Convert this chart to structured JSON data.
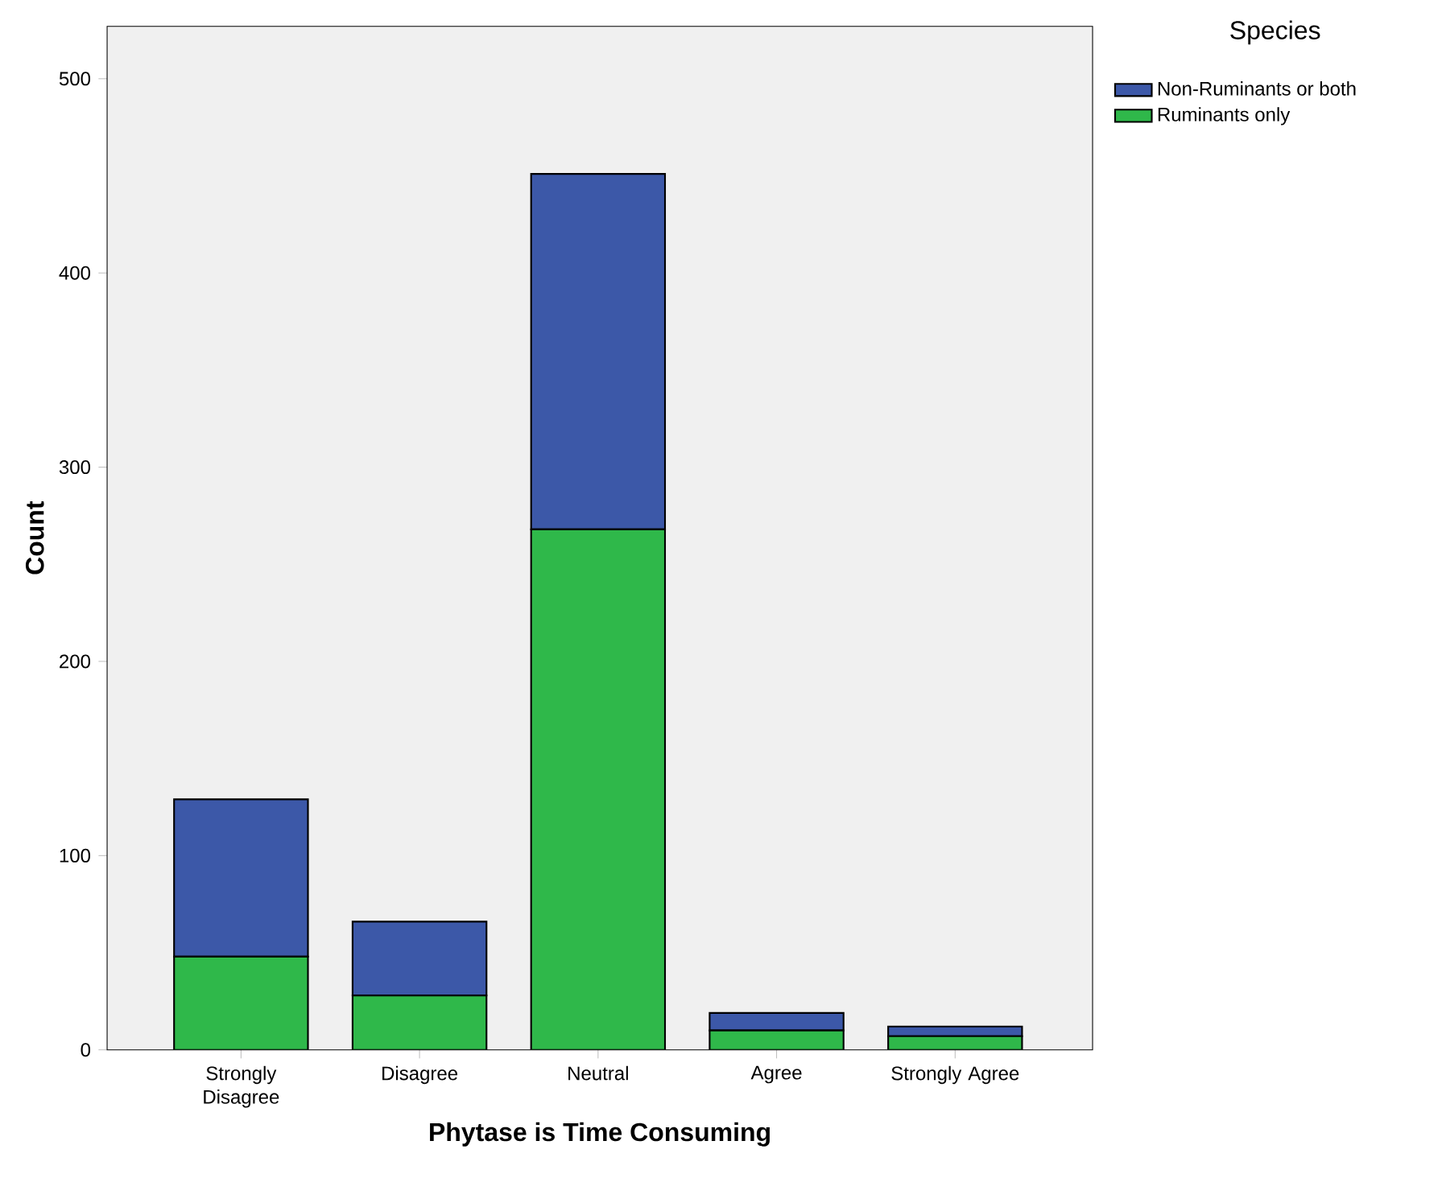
{
  "chart_data": {
    "type": "bar",
    "stacked": true,
    "xlabel": "Phytase is Time Consuming",
    "ylabel": "Count",
    "legend_title": "Species",
    "categories": [
      "Strongly Disagree",
      "Disagree",
      "Neutral",
      "Agree",
      "Strongly Agree"
    ],
    "series": [
      {
        "name": "Ruminants only",
        "color": "#2fb84a",
        "values": [
          48,
          28,
          268,
          10,
          7
        ]
      },
      {
        "name": "Non-Ruminants or both",
        "color": "#3c58a8",
        "values": [
          81,
          38,
          183,
          9,
          5
        ]
      }
    ],
    "ylim": [
      0,
      527
    ],
    "yticks": [
      0,
      100,
      200,
      300,
      400,
      500
    ],
    "grid": false,
    "legend": "top right"
  }
}
